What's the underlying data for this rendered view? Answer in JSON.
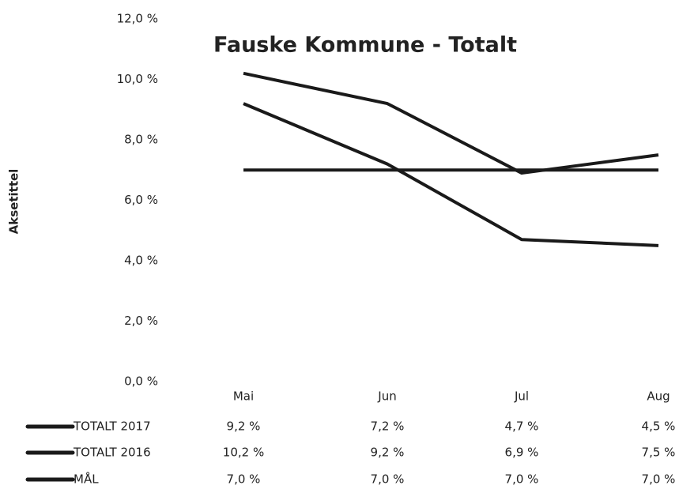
{
  "chart_data": {
    "type": "line",
    "title": "Fauske Kommune - Totalt",
    "y_label": "Aksetittel",
    "categories": [
      "Mai",
      "Jun",
      "Jul",
      "Aug"
    ],
    "series": [
      {
        "name": "TOTALT 2017",
        "color": "#1a1a1a",
        "values": [
          9.2,
          7.2,
          4.7,
          4.5
        ],
        "value_labels": [
          "9,2 %",
          "7,2 %",
          "4,7 %",
          "4,5 %"
        ]
      },
      {
        "name": "TOTALT 2016",
        "color": "#1a1a1a",
        "values": [
          10.2,
          9.2,
          6.9,
          7.5
        ],
        "value_labels": [
          "10,2 %",
          "9,2 %",
          "6,9 %",
          "7,5 %"
        ]
      },
      {
        "name": "MÅL",
        "color": "#1a1a1a",
        "values": [
          7.0,
          7.0,
          7.0,
          7.0
        ],
        "value_labels": [
          "7,0 %",
          "7,0 %",
          "7,0 %",
          "7,0 %"
        ]
      }
    ],
    "ylim": [
      0,
      12
    ],
    "yticks": [
      {
        "value": 0,
        "label": "0,0 %"
      },
      {
        "value": 2,
        "label": "2,0 %"
      },
      {
        "value": 4,
        "label": "4,0 %"
      },
      {
        "value": 6,
        "label": "6,0 %"
      },
      {
        "value": 8,
        "label": "8,0 %"
      },
      {
        "value": 10,
        "label": "10,0 %"
      },
      {
        "value": 12,
        "label": "12,0 %"
      }
    ],
    "grid": false
  }
}
